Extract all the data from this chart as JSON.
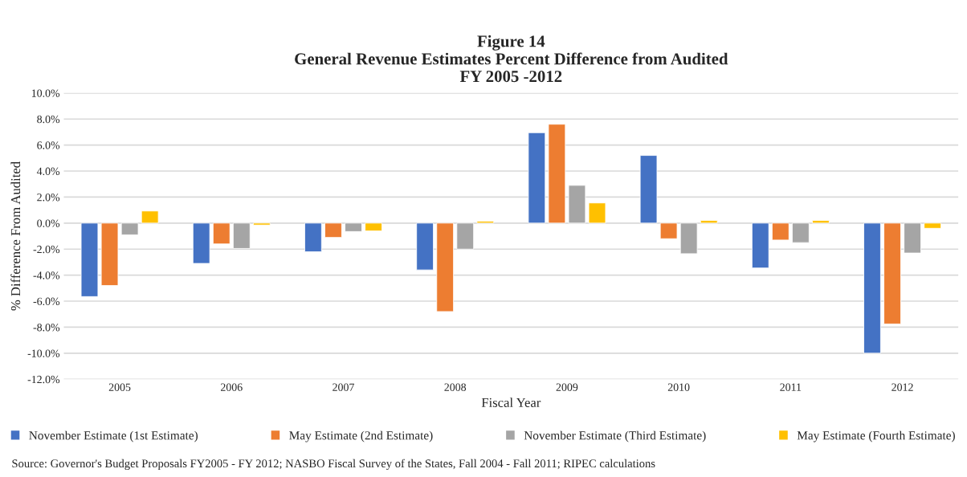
{
  "chart_data": {
    "type": "bar",
    "title": "Figure 14\nGeneral Revenue Estimates Percent Difference from Audited\nFY 2005 -2012",
    "xlabel": "Fiscal Year",
    "ylabel": "% Difference From Audited",
    "categories": [
      "2005",
      "2006",
      "2007",
      "2008",
      "2009",
      "2010",
      "2011",
      "2012"
    ],
    "series": [
      {
        "name": "November Estimate (1st Estimate)",
        "color": "#4472c4",
        "values": [
          -5.65,
          -3.1,
          -2.2,
          -3.6,
          6.95,
          5.2,
          -3.45,
          -10.0
        ]
      },
      {
        "name": "May Estimate (2nd Estimate)",
        "color": "#ed7d31",
        "values": [
          -4.8,
          -1.6,
          -1.1,
          -6.8,
          7.6,
          -1.2,
          -1.3,
          -7.75
        ]
      },
      {
        "name": "November Estimate (Third Estimate)",
        "color": "#a5a5a5",
        "values": [
          -0.9,
          -1.95,
          -0.65,
          -2.0,
          2.9,
          -2.35,
          -1.5,
          -2.3
        ]
      },
      {
        "name": "May Estimate (Fourth Estimate)",
        "color": "#ffc000",
        "values": [
          0.93,
          -0.15,
          -0.6,
          0.15,
          1.55,
          0.2,
          0.2,
          -0.4
        ]
      }
    ],
    "ylim": [
      -12,
      10
    ],
    "yticks": [
      {
        "value": -12,
        "label": "-12.0%"
      },
      {
        "value": -10,
        "label": "-10.0%"
      },
      {
        "value": -8,
        "label": "-8.0%"
      },
      {
        "value": -6,
        "label": "-6.0%"
      },
      {
        "value": -4,
        "label": "-4.0%"
      },
      {
        "value": -2,
        "label": "-2.0%"
      },
      {
        "value": 0,
        "label": "0.0%"
      },
      {
        "value": 2,
        "label": "2.0%"
      },
      {
        "value": 4,
        "label": "4.0%"
      },
      {
        "value": 6,
        "label": "6.0%"
      },
      {
        "value": 8,
        "label": "8.0%"
      },
      {
        "value": 10,
        "label": "10.0%"
      }
    ],
    "grid": "y",
    "legend": "bottom",
    "annotations": [
      "Source: Governor's Budget Proposals FY2005 - FY 2012; NASBO Fiscal Survey of the States, Fall 2004 - Fall 2011; RIPEC calculations"
    ]
  }
}
